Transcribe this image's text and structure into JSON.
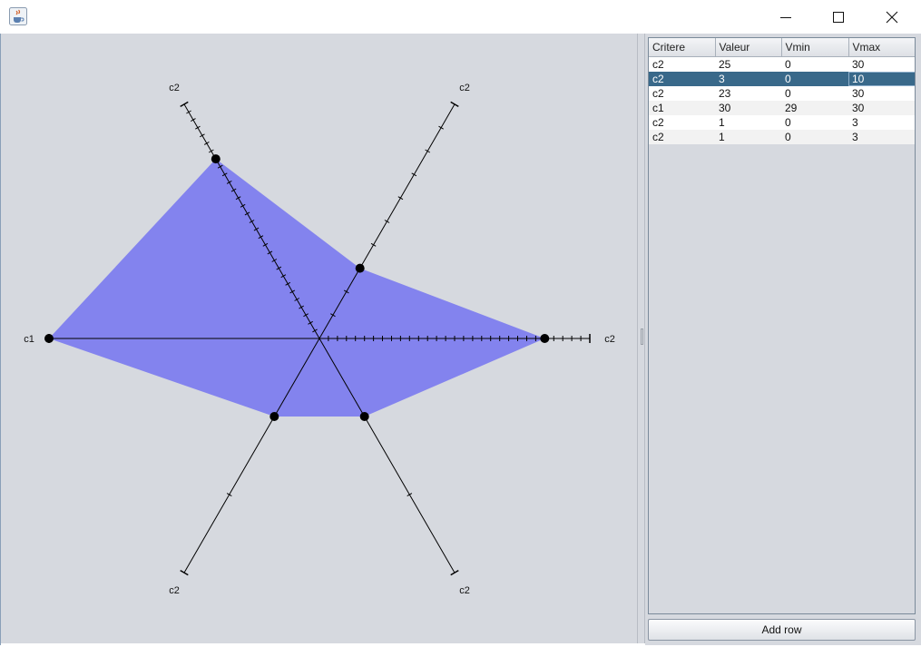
{
  "window": {
    "title": "",
    "icon": "java-cup-icon",
    "controls": [
      "minimize-icon",
      "maximize-icon",
      "close-icon"
    ]
  },
  "chart_data": {
    "type": "radar",
    "axes": [
      {
        "label": "c2",
        "value": 25,
        "min": 0,
        "max": 30
      },
      {
        "label": "c2",
        "value": 3,
        "min": 0,
        "max": 10
      },
      {
        "label": "c2",
        "value": 23,
        "min": 0,
        "max": 30
      },
      {
        "label": "c1",
        "value": 30,
        "min": 29,
        "max": 30
      },
      {
        "label": "c2",
        "value": 1,
        "min": 0,
        "max": 3
      },
      {
        "label": "c2",
        "value": 1,
        "min": 0,
        "max": 3
      }
    ],
    "fill_color": "#8383ee",
    "axis_color": "#000000",
    "point_color": "#000000"
  },
  "table": {
    "columns": [
      "Critere",
      "Valeur",
      "Vmin",
      "Vmax"
    ],
    "rows": [
      [
        "c2",
        "25",
        "0",
        "30"
      ],
      [
        "c2",
        "3",
        "0",
        "10"
      ],
      [
        "c2",
        "23",
        "0",
        "30"
      ],
      [
        "c1",
        "30",
        "29",
        "30"
      ],
      [
        "c2",
        "1",
        "0",
        "3"
      ],
      [
        "c2",
        "1",
        "0",
        "3"
      ]
    ],
    "selected_row": 1
  },
  "add_row_label": "Add row"
}
